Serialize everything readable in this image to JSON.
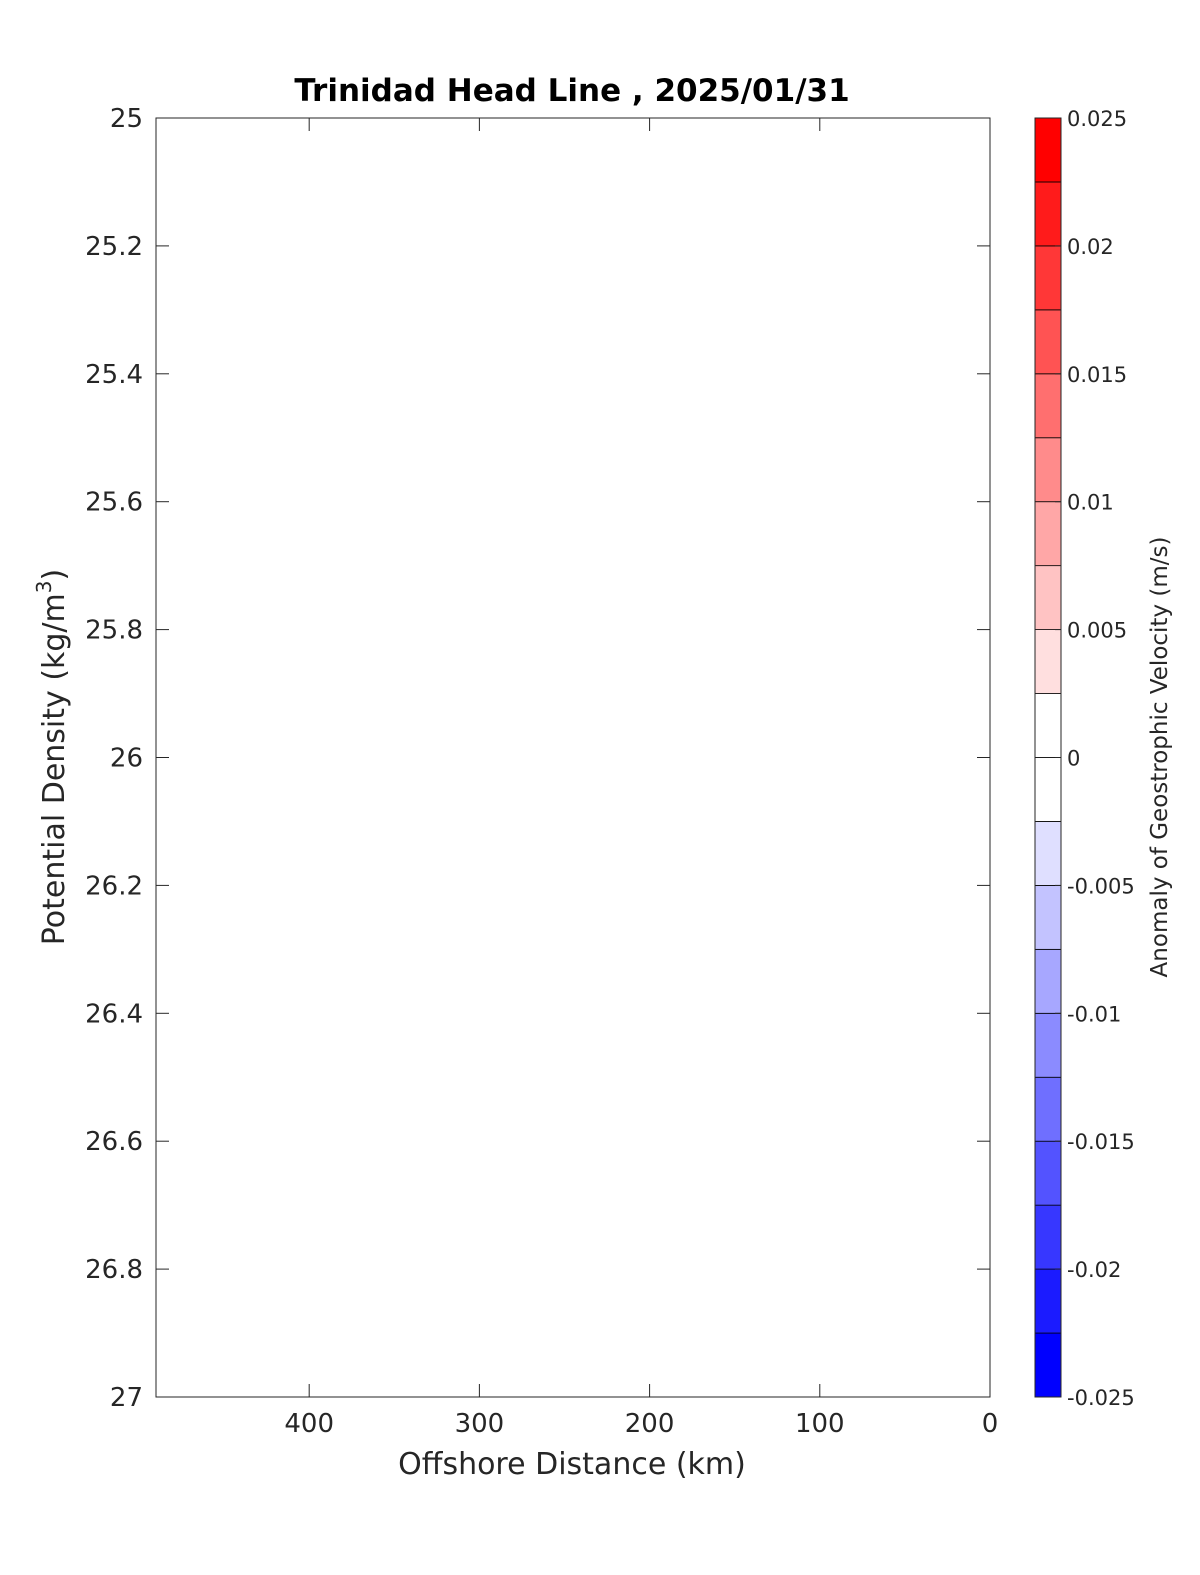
{
  "chart_data": {
    "type": "heatmap",
    "title": "Trinidad Head Line , 2025/01/31",
    "xlabel": "Offshore Distance (km)",
    "ylabel": "Potential Density (kg/m",
    "ylabel_superscript": "3",
    "ylabel_suffix": ")",
    "xlim": [
      490,
      0
    ],
    "ylim": [
      25,
      27
    ],
    "x_reversed": true,
    "y_reversed": true,
    "x_ticks": [
      400,
      300,
      200,
      100,
      0
    ],
    "y_ticks": [
      25,
      25.2,
      25.4,
      25.6,
      25.8,
      26,
      26.2,
      26.4,
      26.6,
      26.8,
      27
    ],
    "values": [],
    "grid": false,
    "colorbar": {
      "label": "Anomaly of Geostrophic Velocity (m/s)",
      "range": [
        -0.025,
        0.025
      ],
      "levels": [
        -0.025,
        -0.0225,
        -0.02,
        -0.0175,
        -0.015,
        -0.0125,
        -0.01,
        -0.0075,
        -0.005,
        -0.0025,
        0,
        0.0025,
        0.005,
        0.0075,
        0.01,
        0.0125,
        0.015,
        0.0175,
        0.02,
        0.0225,
        0.025
      ],
      "colors": [
        "#0000ff",
        "#1b1bff",
        "#3737ff",
        "#5353ff",
        "#6f6fff",
        "#8b8bff",
        "#a7a7ff",
        "#c3c3ff",
        "#dfdfff",
        "#ffffff",
        "#ffffff",
        "#ffdfdf",
        "#ffc3c3",
        "#ffa7a7",
        "#ff8b8b",
        "#ff6f6f",
        "#ff5353",
        "#ff3737",
        "#ff1b1b",
        "#ff0000"
      ],
      "ticks": [
        0.025,
        0.02,
        0.015,
        0.01,
        0.005,
        0,
        -0.005,
        -0.01,
        -0.015,
        -0.02,
        -0.025
      ],
      "tick_labels": [
        "0.025",
        "0.02",
        "0.015",
        "0.01",
        "0.005",
        "0",
        "-0.005",
        "-0.01",
        "-0.015",
        "-0.02",
        "-0.025"
      ]
    }
  }
}
